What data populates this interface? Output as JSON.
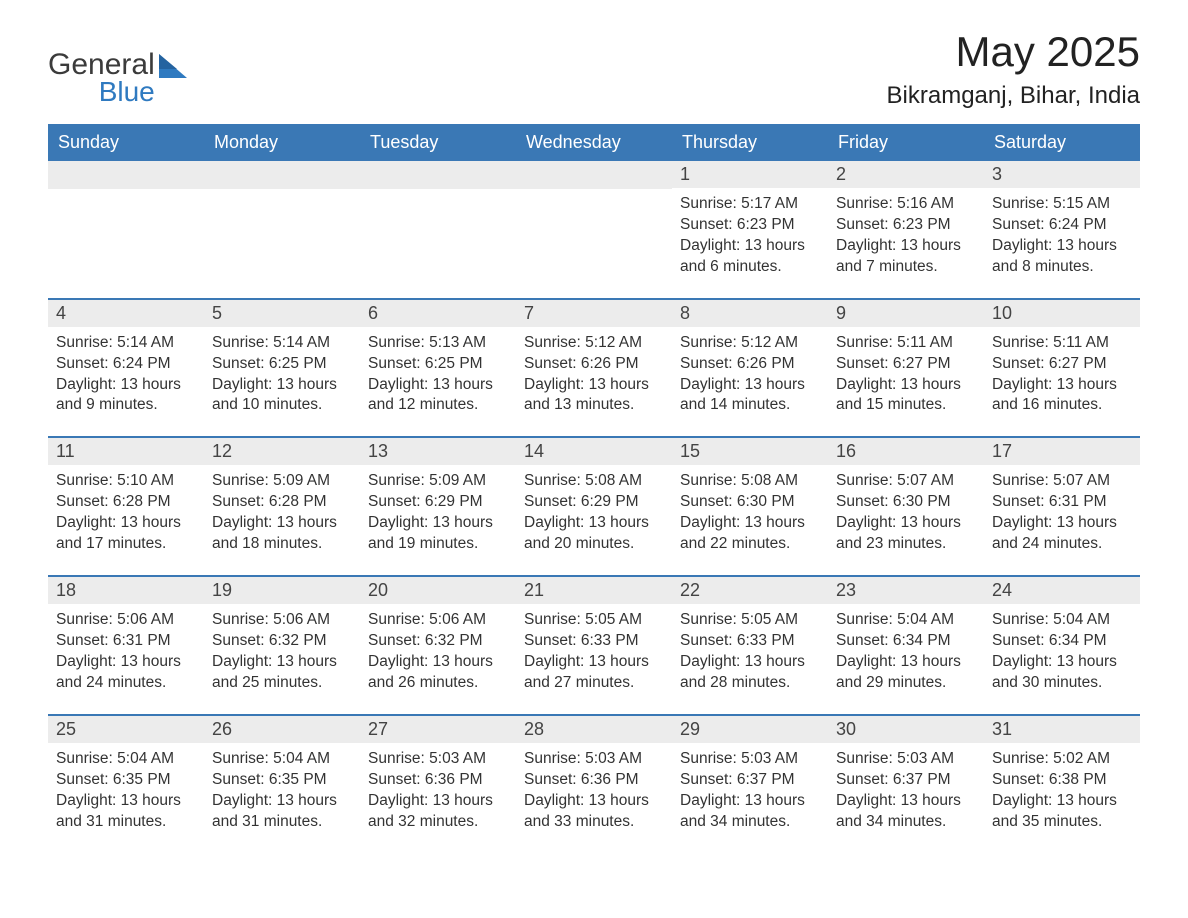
{
  "brand": {
    "name_main": "General",
    "name_accent": "Blue",
    "icon_color": "#2f7ac0"
  },
  "title": "May 2025",
  "location": "Bikramganj, Bihar, India",
  "colors": {
    "header_bg": "#3a78b5",
    "header_text": "#ffffff",
    "daynum_bg": "#ececec",
    "row_border": "#3a78b5",
    "text": "#333333",
    "background": "#ffffff"
  },
  "typography": {
    "title_fontsize": 42,
    "location_fontsize": 24,
    "weekday_fontsize": 18,
    "daynum_fontsize": 18,
    "body_fontsize": 15.5
  },
  "weekdays": [
    "Sunday",
    "Monday",
    "Tuesday",
    "Wednesday",
    "Thursday",
    "Friday",
    "Saturday"
  ],
  "weeks": [
    [
      null,
      null,
      null,
      null,
      {
        "n": "1",
        "sunrise": "Sunrise: 5:17 AM",
        "sunset": "Sunset: 6:23 PM",
        "daylight": "Daylight: 13 hours and 6 minutes."
      },
      {
        "n": "2",
        "sunrise": "Sunrise: 5:16 AM",
        "sunset": "Sunset: 6:23 PM",
        "daylight": "Daylight: 13 hours and 7 minutes."
      },
      {
        "n": "3",
        "sunrise": "Sunrise: 5:15 AM",
        "sunset": "Sunset: 6:24 PM",
        "daylight": "Daylight: 13 hours and 8 minutes."
      }
    ],
    [
      {
        "n": "4",
        "sunrise": "Sunrise: 5:14 AM",
        "sunset": "Sunset: 6:24 PM",
        "daylight": "Daylight: 13 hours and 9 minutes."
      },
      {
        "n": "5",
        "sunrise": "Sunrise: 5:14 AM",
        "sunset": "Sunset: 6:25 PM",
        "daylight": "Daylight: 13 hours and 10 minutes."
      },
      {
        "n": "6",
        "sunrise": "Sunrise: 5:13 AM",
        "sunset": "Sunset: 6:25 PM",
        "daylight": "Daylight: 13 hours and 12 minutes."
      },
      {
        "n": "7",
        "sunrise": "Sunrise: 5:12 AM",
        "sunset": "Sunset: 6:26 PM",
        "daylight": "Daylight: 13 hours and 13 minutes."
      },
      {
        "n": "8",
        "sunrise": "Sunrise: 5:12 AM",
        "sunset": "Sunset: 6:26 PM",
        "daylight": "Daylight: 13 hours and 14 minutes."
      },
      {
        "n": "9",
        "sunrise": "Sunrise: 5:11 AM",
        "sunset": "Sunset: 6:27 PM",
        "daylight": "Daylight: 13 hours and 15 minutes."
      },
      {
        "n": "10",
        "sunrise": "Sunrise: 5:11 AM",
        "sunset": "Sunset: 6:27 PM",
        "daylight": "Daylight: 13 hours and 16 minutes."
      }
    ],
    [
      {
        "n": "11",
        "sunrise": "Sunrise: 5:10 AM",
        "sunset": "Sunset: 6:28 PM",
        "daylight": "Daylight: 13 hours and 17 minutes."
      },
      {
        "n": "12",
        "sunrise": "Sunrise: 5:09 AM",
        "sunset": "Sunset: 6:28 PM",
        "daylight": "Daylight: 13 hours and 18 minutes."
      },
      {
        "n": "13",
        "sunrise": "Sunrise: 5:09 AM",
        "sunset": "Sunset: 6:29 PM",
        "daylight": "Daylight: 13 hours and 19 minutes."
      },
      {
        "n": "14",
        "sunrise": "Sunrise: 5:08 AM",
        "sunset": "Sunset: 6:29 PM",
        "daylight": "Daylight: 13 hours and 20 minutes."
      },
      {
        "n": "15",
        "sunrise": "Sunrise: 5:08 AM",
        "sunset": "Sunset: 6:30 PM",
        "daylight": "Daylight: 13 hours and 22 minutes."
      },
      {
        "n": "16",
        "sunrise": "Sunrise: 5:07 AM",
        "sunset": "Sunset: 6:30 PM",
        "daylight": "Daylight: 13 hours and 23 minutes."
      },
      {
        "n": "17",
        "sunrise": "Sunrise: 5:07 AM",
        "sunset": "Sunset: 6:31 PM",
        "daylight": "Daylight: 13 hours and 24 minutes."
      }
    ],
    [
      {
        "n": "18",
        "sunrise": "Sunrise: 5:06 AM",
        "sunset": "Sunset: 6:31 PM",
        "daylight": "Daylight: 13 hours and 24 minutes."
      },
      {
        "n": "19",
        "sunrise": "Sunrise: 5:06 AM",
        "sunset": "Sunset: 6:32 PM",
        "daylight": "Daylight: 13 hours and 25 minutes."
      },
      {
        "n": "20",
        "sunrise": "Sunrise: 5:06 AM",
        "sunset": "Sunset: 6:32 PM",
        "daylight": "Daylight: 13 hours and 26 minutes."
      },
      {
        "n": "21",
        "sunrise": "Sunrise: 5:05 AM",
        "sunset": "Sunset: 6:33 PM",
        "daylight": "Daylight: 13 hours and 27 minutes."
      },
      {
        "n": "22",
        "sunrise": "Sunrise: 5:05 AM",
        "sunset": "Sunset: 6:33 PM",
        "daylight": "Daylight: 13 hours and 28 minutes."
      },
      {
        "n": "23",
        "sunrise": "Sunrise: 5:04 AM",
        "sunset": "Sunset: 6:34 PM",
        "daylight": "Daylight: 13 hours and 29 minutes."
      },
      {
        "n": "24",
        "sunrise": "Sunrise: 5:04 AM",
        "sunset": "Sunset: 6:34 PM",
        "daylight": "Daylight: 13 hours and 30 minutes."
      }
    ],
    [
      {
        "n": "25",
        "sunrise": "Sunrise: 5:04 AM",
        "sunset": "Sunset: 6:35 PM",
        "daylight": "Daylight: 13 hours and 31 minutes."
      },
      {
        "n": "26",
        "sunrise": "Sunrise: 5:04 AM",
        "sunset": "Sunset: 6:35 PM",
        "daylight": "Daylight: 13 hours and 31 minutes."
      },
      {
        "n": "27",
        "sunrise": "Sunrise: 5:03 AM",
        "sunset": "Sunset: 6:36 PM",
        "daylight": "Daylight: 13 hours and 32 minutes."
      },
      {
        "n": "28",
        "sunrise": "Sunrise: 5:03 AM",
        "sunset": "Sunset: 6:36 PM",
        "daylight": "Daylight: 13 hours and 33 minutes."
      },
      {
        "n": "29",
        "sunrise": "Sunrise: 5:03 AM",
        "sunset": "Sunset: 6:37 PM",
        "daylight": "Daylight: 13 hours and 34 minutes."
      },
      {
        "n": "30",
        "sunrise": "Sunrise: 5:03 AM",
        "sunset": "Sunset: 6:37 PM",
        "daylight": "Daylight: 13 hours and 34 minutes."
      },
      {
        "n": "31",
        "sunrise": "Sunrise: 5:02 AM",
        "sunset": "Sunset: 6:38 PM",
        "daylight": "Daylight: 13 hours and 35 minutes."
      }
    ]
  ]
}
